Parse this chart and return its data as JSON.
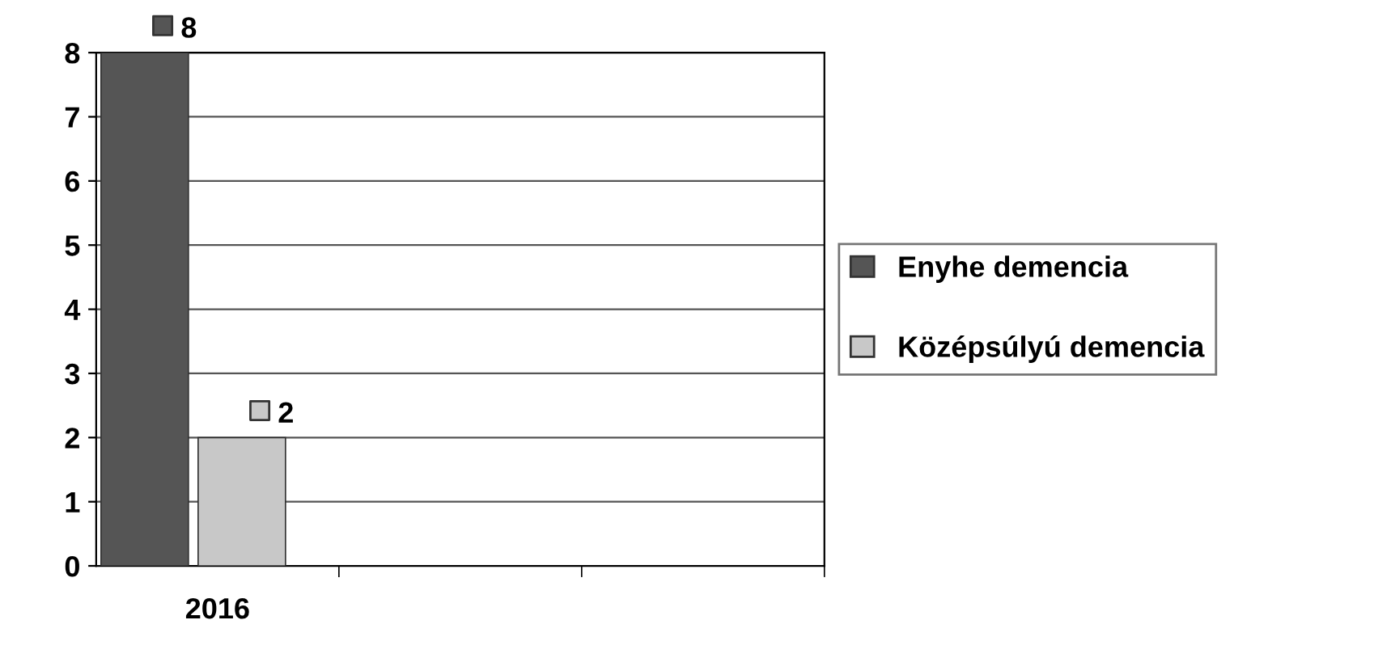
{
  "chart_data": {
    "type": "bar",
    "categories": [
      "2016",
      null,
      null
    ],
    "series": [
      {
        "name": "Enyhe demencia",
        "color": "#555555",
        "values": [
          8,
          null,
          null
        ]
      },
      {
        "name": "Középsúlyú demencia",
        "color": "#c8c8c8",
        "values": [
          2,
          null,
          null
        ]
      }
    ],
    "ylim": [
      0,
      8
    ],
    "yticks": [
      0,
      1,
      2,
      3,
      4,
      5,
      6,
      7,
      8
    ],
    "grid": "y",
    "legend": "right",
    "data_labels": true
  }
}
